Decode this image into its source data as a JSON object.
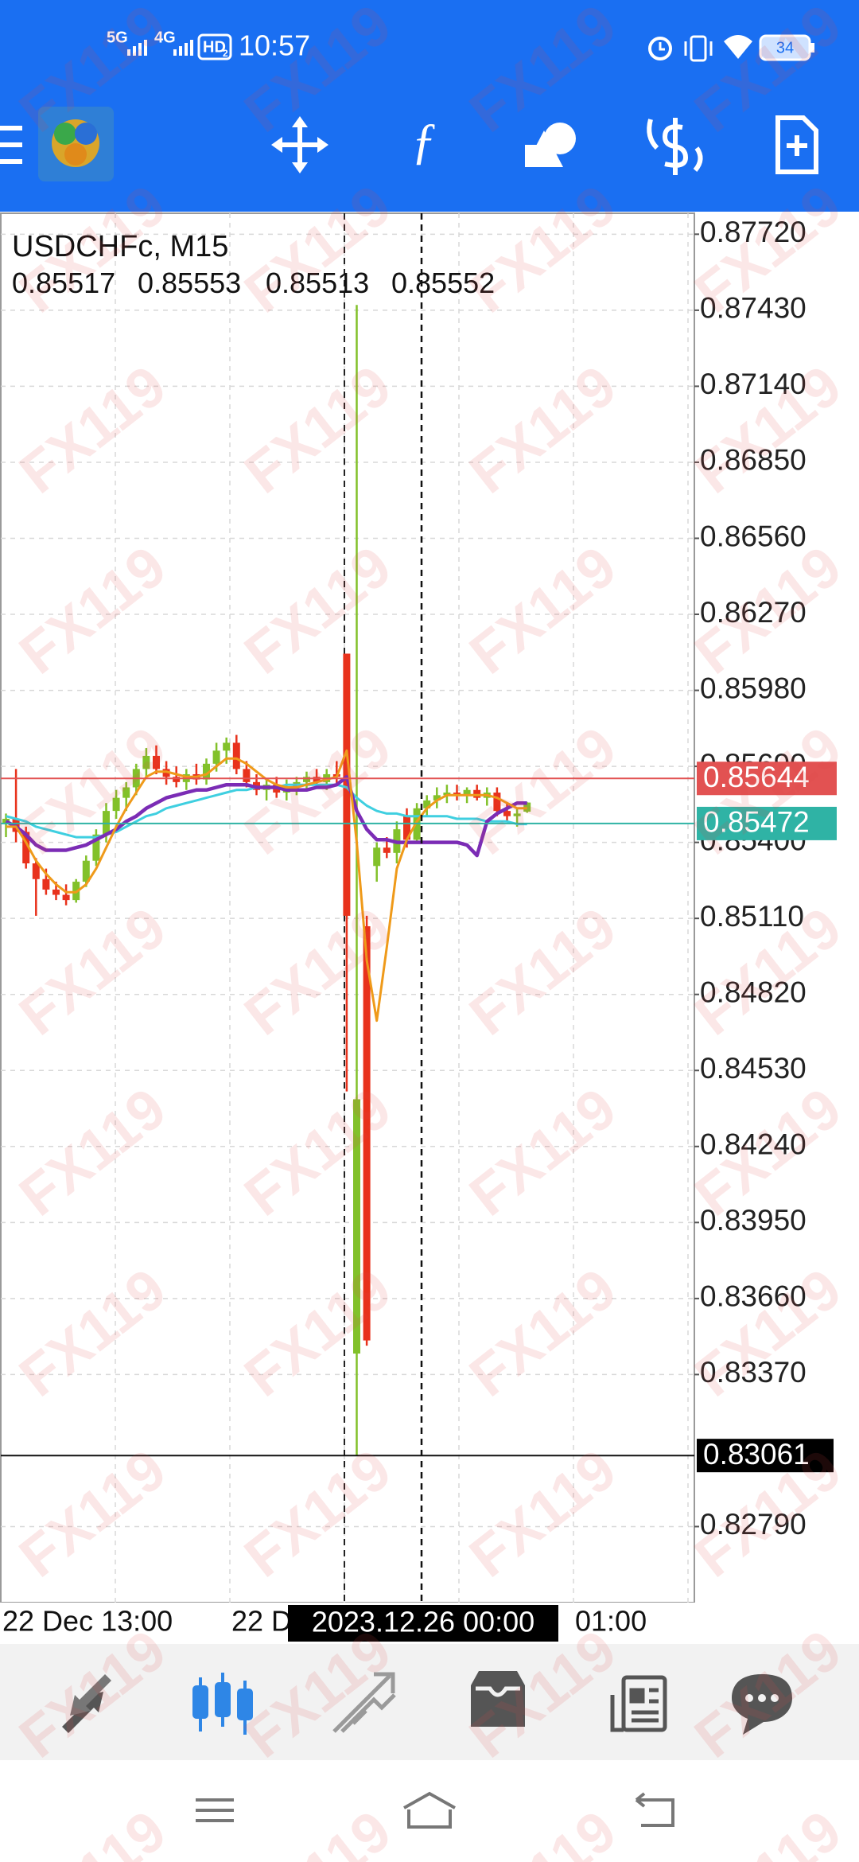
{
  "status_bar": {
    "time": "10:57",
    "network": [
      "5G",
      "4G"
    ],
    "hd": [
      "HD",
      "2"
    ],
    "battery": "34"
  },
  "watermark": "FX119",
  "chart_data": {
    "type": "candlestick",
    "title": "USDCHFc, M15",
    "up_color": "#82c12a",
    "down_color": "#e8321c",
    "ylim": [
      0.825,
      0.878
    ],
    "yticks": [
      {
        "value": 0.8772,
        "label": "0.87720"
      },
      {
        "value": 0.8743,
        "label": "0.87430"
      },
      {
        "value": 0.8714,
        "label": "0.87140"
      },
      {
        "value": 0.8685,
        "label": "0.86850"
      },
      {
        "value": 0.8656,
        "label": "0.86560"
      },
      {
        "value": 0.8627,
        "label": "0.86270"
      },
      {
        "value": 0.8598,
        "label": "0.85980"
      },
      {
        "value": 0.8569,
        "label": "0.85690"
      },
      {
        "value": 0.854,
        "label": "0.85400"
      },
      {
        "value": 0.8511,
        "label": "0.85110"
      },
      {
        "value": 0.8482,
        "label": "0.84820"
      },
      {
        "value": 0.8453,
        "label": "0.84530"
      },
      {
        "value": 0.8424,
        "label": "0.84240"
      },
      {
        "value": 0.8395,
        "label": "0.83950"
      },
      {
        "value": 0.8366,
        "label": "0.83660"
      },
      {
        "value": 0.8337,
        "label": "0.83370"
      },
      {
        "value": 0.8279,
        "label": "0.82790"
      }
    ],
    "grid": true,
    "time_labels": [
      "22 Dec 13:00",
      "22 D",
      "01:00"
    ],
    "candles": [
      [
        0.8547,
        0.8551,
        0.8542,
        0.8549
      ],
      [
        0.8549,
        0.8568,
        0.854,
        0.8544
      ],
      [
        0.8544,
        0.8546,
        0.853,
        0.8532
      ],
      [
        0.8532,
        0.8534,
        0.8512,
        0.8526
      ],
      [
        0.8526,
        0.853,
        0.852,
        0.8522
      ],
      [
        0.8522,
        0.8525,
        0.8518,
        0.852
      ],
      [
        0.852,
        0.8524,
        0.8516,
        0.8518
      ],
      [
        0.8518,
        0.8526,
        0.8517,
        0.8525
      ],
      [
        0.8525,
        0.8535,
        0.8523,
        0.8533
      ],
      [
        0.8533,
        0.8545,
        0.8531,
        0.8543
      ],
      [
        0.8543,
        0.8555,
        0.854,
        0.8552
      ],
      [
        0.8552,
        0.856,
        0.8549,
        0.8557
      ],
      [
        0.8557,
        0.8563,
        0.8552,
        0.8561
      ],
      [
        0.8561,
        0.857,
        0.8558,
        0.8568
      ],
      [
        0.8568,
        0.8576,
        0.8565,
        0.8573
      ],
      [
        0.8573,
        0.8577,
        0.8566,
        0.8568
      ],
      [
        0.8568,
        0.8571,
        0.8562,
        0.8565
      ],
      [
        0.8565,
        0.8569,
        0.8561,
        0.8563
      ],
      [
        0.8563,
        0.8568,
        0.856,
        0.8566
      ],
      [
        0.8566,
        0.857,
        0.8562,
        0.8564
      ],
      [
        0.8564,
        0.8572,
        0.8562,
        0.857
      ],
      [
        0.857,
        0.8578,
        0.8567,
        0.8575
      ],
      [
        0.8575,
        0.858,
        0.857,
        0.8578
      ],
      [
        0.8578,
        0.8581,
        0.8566,
        0.8568
      ],
      [
        0.8568,
        0.8571,
        0.8561,
        0.8563
      ],
      [
        0.8563,
        0.8566,
        0.8558,
        0.856
      ],
      [
        0.856,
        0.8564,
        0.8556,
        0.8562
      ],
      [
        0.8562,
        0.8565,
        0.8557,
        0.8559
      ],
      [
        0.8559,
        0.8564,
        0.8556,
        0.8561
      ],
      [
        0.8561,
        0.8565,
        0.8558,
        0.8563
      ],
      [
        0.8563,
        0.8567,
        0.856,
        0.8565
      ],
      [
        0.8565,
        0.8568,
        0.8561,
        0.8563
      ],
      [
        0.8563,
        0.8568,
        0.856,
        0.8566
      ],
      [
        0.8566,
        0.8571,
        0.8562,
        0.8565
      ],
      [
        0.8612,
        0.8612,
        0.8445,
        0.8512
      ],
      [
        0.8345,
        0.8745,
        0.8306,
        0.8442
      ],
      [
        0.8508,
        0.8512,
        0.8348,
        0.835
      ],
      [
        0.8531,
        0.854,
        0.8525,
        0.8538
      ],
      [
        0.8538,
        0.8542,
        0.8534,
        0.8536
      ],
      [
        0.8536,
        0.8548,
        0.8532,
        0.8545
      ],
      [
        0.855,
        0.8553,
        0.8538,
        0.8541
      ],
      [
        0.8541,
        0.8555,
        0.854,
        0.8553
      ],
      [
        0.8553,
        0.8558,
        0.855,
        0.8556
      ],
      [
        0.8556,
        0.8561,
        0.8553,
        0.8558
      ],
      [
        0.8558,
        0.8562,
        0.8555,
        0.8559
      ],
      [
        0.8559,
        0.8562,
        0.8556,
        0.8558
      ],
      [
        0.8558,
        0.8561,
        0.8555,
        0.856
      ],
      [
        0.856,
        0.8562,
        0.8556,
        0.8557
      ],
      [
        0.8557,
        0.8561,
        0.8554,
        0.8559
      ],
      [
        0.8559,
        0.8561,
        0.855,
        0.8552
      ],
      [
        0.8552,
        0.8555,
        0.8548,
        0.855
      ],
      [
        0.855,
        0.8553,
        0.8546,
        0.8551
      ],
      [
        0.85517,
        0.85553,
        0.85513,
        0.85552
      ]
    ],
    "lines": [
      {
        "color": "#3fcfe0",
        "values": [
          0.855,
          0.8549,
          0.8548,
          0.8546,
          0.8545,
          0.8544,
          0.8543,
          0.8542,
          0.8542,
          0.8542,
          0.8543,
          0.8544,
          0.8546,
          0.8548,
          0.855,
          0.8551,
          0.8553,
          0.8554,
          0.8555,
          0.8556,
          0.8557,
          0.8558,
          0.8559,
          0.856,
          0.856,
          0.8561,
          0.8561,
          0.8561,
          0.8562,
          0.8562,
          0.8562,
          0.8562,
          0.8562,
          0.8562,
          0.8561,
          0.8557,
          0.8554,
          0.8552,
          0.8551,
          0.8551,
          0.855,
          0.855,
          0.855,
          0.855,
          0.855,
          0.8549,
          0.8549,
          0.8549,
          0.8548,
          0.8548,
          0.8548,
          0.8547,
          0.8547
        ]
      },
      {
        "color": "#7b2cb5",
        "values": [
          0.8548,
          0.8546,
          0.8543,
          0.8539,
          0.8537,
          0.8537,
          0.8537,
          0.8538,
          0.8539,
          0.8541,
          0.8543,
          0.8545,
          0.8548,
          0.855,
          0.8553,
          0.8555,
          0.8557,
          0.8558,
          0.8559,
          0.856,
          0.856,
          0.8561,
          0.8562,
          0.8562,
          0.8562,
          0.8561,
          0.8561,
          0.8561,
          0.856,
          0.856,
          0.856,
          0.8561,
          0.8561,
          0.8562,
          0.8565,
          0.8552,
          0.8545,
          0.8541,
          0.8541,
          0.854,
          0.854,
          0.854,
          0.854,
          0.854,
          0.854,
          0.854,
          0.8539,
          0.8535,
          0.8548,
          0.8551,
          0.8553,
          0.8555,
          0.8555
        ]
      },
      {
        "color": "#ef9a1a",
        "values": [
          0.8546,
          0.8546,
          0.854,
          0.8533,
          0.8528,
          0.8524,
          0.8521,
          0.8521,
          0.8524,
          0.853,
          0.8538,
          0.8546,
          0.8553,
          0.8559,
          0.8565,
          0.8567,
          0.8567,
          0.8566,
          0.8565,
          0.8565,
          0.8566,
          0.8569,
          0.8572,
          0.8572,
          0.857,
          0.8567,
          0.8564,
          0.8562,
          0.8561,
          0.8561,
          0.8562,
          0.8563,
          0.8564,
          0.8565,
          0.8575,
          0.854,
          0.8495,
          0.8472,
          0.85,
          0.853,
          0.8541,
          0.8548,
          0.8553,
          0.8556,
          0.8558,
          0.8558,
          0.8558,
          0.8558,
          0.8558,
          0.8557,
          0.8555,
          0.8553,
          0.8553
        ]
      }
    ],
    "price_lines": [
      {
        "value": 0.85644,
        "color": "#e25252"
      },
      {
        "value": 0.85472,
        "color": "#2fb3a5"
      }
    ],
    "crosshair": {
      "price": 0.83061,
      "time": "2023.12.26 00:00"
    }
  }
}
